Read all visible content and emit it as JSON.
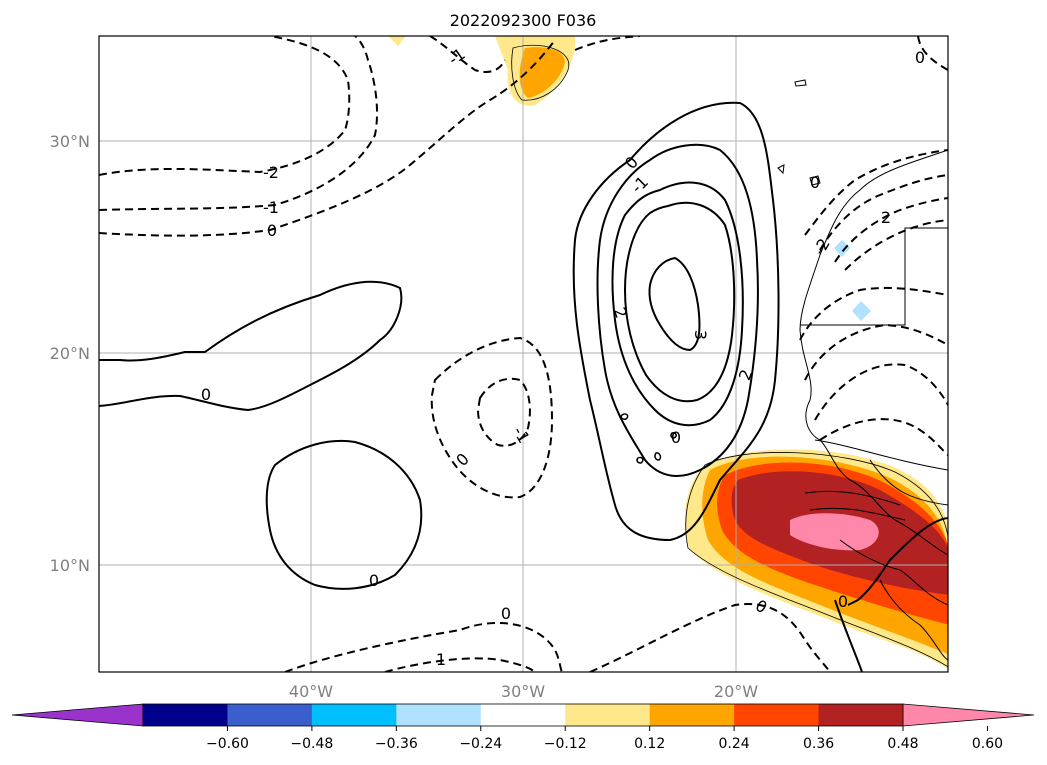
{
  "title": "2022092300 F036",
  "map": {
    "lat_labels": [
      "30°N",
      "20°N",
      "10°N"
    ],
    "lon_labels": [
      "40°W",
      "30°W",
      "20°W"
    ],
    "gridlines": true,
    "line_color": "#000000",
    "grid_color": "#b0b0b0",
    "contour_labels": [
      "-2",
      "-1",
      "0",
      "-1",
      "0",
      "2",
      "-1",
      "0",
      "3",
      "2",
      "0",
      "0",
      "0",
      "0",
      "1",
      "0",
      "0",
      "-1",
      "2",
      "-2",
      "0",
      "0"
    ]
  },
  "colorbar": {
    "ticks": [
      "−0.60",
      "−0.48",
      "−0.36",
      "−0.24",
      "−0.12",
      "0.12",
      "0.24",
      "0.36",
      "0.48",
      "0.60"
    ],
    "colors": [
      "#9933cc",
      "#00008b",
      "#3a5fcd",
      "#00bfff",
      "#b0e2ff",
      "#ffffff",
      "#ffe88a",
      "#ffa500",
      "#ff4500",
      "#b22222",
      "#ff88aa"
    ]
  }
}
